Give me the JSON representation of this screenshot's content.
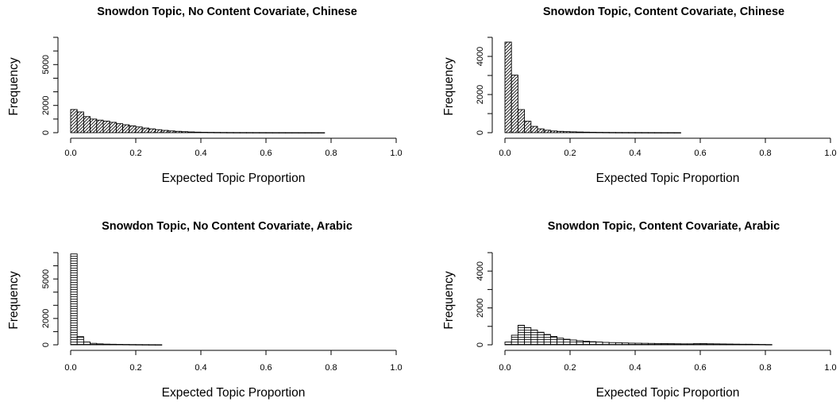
{
  "chart_data": [
    {
      "type": "bar",
      "title": "Snowdon Topic, No Content Covariate, Chinese",
      "xlabel": "Expected Topic Proportion",
      "ylabel": "Frequency",
      "xlim": [
        0,
        1
      ],
      "ylim": [
        0,
        7000
      ],
      "xticks": [
        "0.0",
        "0.2",
        "0.4",
        "0.6",
        "0.8",
        "1.0"
      ],
      "yticks": [
        "0",
        "2000",
        "5000"
      ],
      "fill_pattern": "diagonal",
      "bin_width": 0.02,
      "bins_start": [
        0.0,
        0.02,
        0.04,
        0.06,
        0.08,
        0.1,
        0.12,
        0.14,
        0.16,
        0.18,
        0.2,
        0.22,
        0.24,
        0.26,
        0.28,
        0.3,
        0.32,
        0.34,
        0.36,
        0.38,
        0.4,
        0.42,
        0.44,
        0.46,
        0.48,
        0.5,
        0.52,
        0.54,
        0.56,
        0.58,
        0.6,
        0.62,
        0.64,
        0.66,
        0.68,
        0.7,
        0.72,
        0.74,
        0.76
      ],
      "values": [
        1700,
        1520,
        1180,
        1000,
        920,
        850,
        760,
        660,
        580,
        500,
        420,
        340,
        280,
        220,
        170,
        130,
        100,
        75,
        55,
        40,
        30,
        24,
        20,
        16,
        13,
        11,
        10,
        9,
        8,
        7,
        6,
        5,
        5,
        4,
        4,
        3,
        3,
        2,
        2
      ]
    },
    {
      "type": "bar",
      "title": "Snowdon Topic, Content Covariate, Chinese",
      "xlabel": "Expected Topic Proportion",
      "ylabel": "Frequency",
      "xlim": [
        0,
        1
      ],
      "ylim": [
        0,
        5000
      ],
      "xticks": [
        "0.0",
        "0.2",
        "0.4",
        "0.6",
        "0.8",
        "1.0"
      ],
      "yticks": [
        "0",
        "2000",
        "4000"
      ],
      "fill_pattern": "diagonal",
      "bin_width": 0.02,
      "bins_start": [
        0.0,
        0.02,
        0.04,
        0.06,
        0.08,
        0.1,
        0.12,
        0.14,
        0.16,
        0.18,
        0.2,
        0.22,
        0.24,
        0.26,
        0.28,
        0.3,
        0.32,
        0.34,
        0.36,
        0.38,
        0.4,
        0.42,
        0.44,
        0.46,
        0.48,
        0.5,
        0.52
      ],
      "values": [
        4750,
        3020,
        1210,
        600,
        330,
        200,
        130,
        90,
        70,
        55,
        45,
        35,
        28,
        22,
        18,
        15,
        12,
        10,
        9,
        8,
        7,
        6,
        5,
        4,
        3,
        3,
        2
      ]
    },
    {
      "type": "bar",
      "title": "Snowdon Topic, No Content Covariate, Arabic",
      "xlabel": "Expected Topic Proportion",
      "ylabel": "Frequency",
      "xlim": [
        0,
        1
      ],
      "ylim": [
        0,
        7000
      ],
      "xticks": [
        "0.0",
        "0.2",
        "0.4",
        "0.6",
        "0.8",
        "1.0"
      ],
      "yticks": [
        "0",
        "2000",
        "5000"
      ],
      "fill_pattern": "horizontal",
      "bin_width": 0.02,
      "bins_start": [
        0.0,
        0.02,
        0.04,
        0.06,
        0.08,
        0.1,
        0.12,
        0.14,
        0.16,
        0.18,
        0.2,
        0.22,
        0.24,
        0.26
      ],
      "values": [
        6900,
        620,
        210,
        110,
        70,
        50,
        40,
        32,
        26,
        20,
        16,
        12,
        9,
        6
      ]
    },
    {
      "type": "bar",
      "title": "Snowdon Topic, Content Covariate, Arabic",
      "xlabel": "Expected Topic Proportion",
      "ylabel": "Frequency",
      "xlim": [
        0,
        1
      ],
      "ylim": [
        0,
        5000
      ],
      "xticks": [
        "0.0",
        "0.2",
        "0.4",
        "0.6",
        "0.8",
        "1.0"
      ],
      "yticks": [
        "0",
        "2000",
        "4000"
      ],
      "fill_pattern": "horizontal",
      "bin_width": 0.02,
      "bins_start": [
        0.0,
        0.02,
        0.04,
        0.06,
        0.08,
        0.1,
        0.12,
        0.14,
        0.16,
        0.18,
        0.2,
        0.22,
        0.24,
        0.26,
        0.28,
        0.3,
        0.32,
        0.34,
        0.36,
        0.38,
        0.4,
        0.42,
        0.44,
        0.46,
        0.48,
        0.5,
        0.52,
        0.54,
        0.56,
        0.58,
        0.6,
        0.62,
        0.64,
        0.66,
        0.68,
        0.7,
        0.72,
        0.74,
        0.76,
        0.78,
        0.8
      ],
      "values": [
        150,
        520,
        1060,
        930,
        800,
        680,
        560,
        450,
        360,
        300,
        260,
        220,
        190,
        170,
        150,
        130,
        120,
        110,
        100,
        90,
        85,
        80,
        75,
        70,
        65,
        60,
        55,
        50,
        50,
        70,
        65,
        55,
        50,
        45,
        40,
        35,
        30,
        30,
        25,
        20,
        15
      ]
    }
  ]
}
